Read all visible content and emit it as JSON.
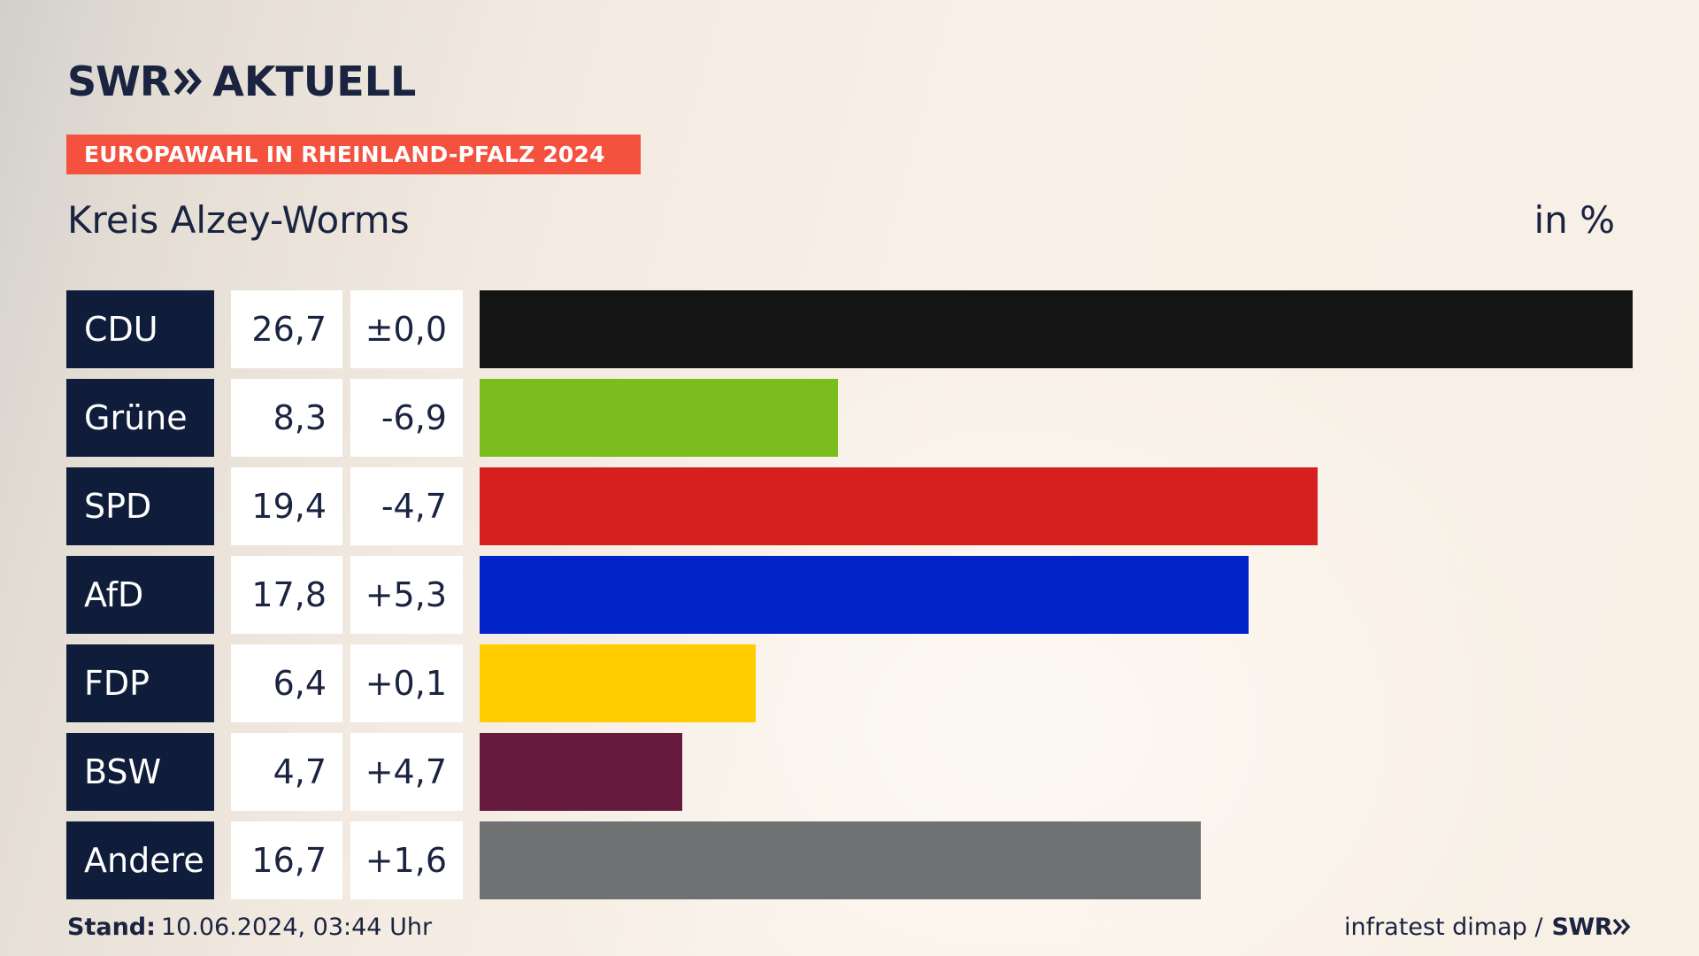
{
  "header": {
    "logo_brand": "SWR",
    "logo_product": "AKTUELL",
    "banner": "EUROPAWAHL IN RHEINLAND-PFALZ 2024",
    "subtitle": "Kreis Alzey-Worms",
    "unit": "in %"
  },
  "chart_data": {
    "type": "bar",
    "orientation": "horizontal",
    "categories": [
      "CDU",
      "Grüne",
      "SPD",
      "AfD",
      "FDP",
      "BSW",
      "Andere"
    ],
    "values": [
      26.7,
      8.3,
      19.4,
      17.8,
      6.4,
      4.7,
      16.7
    ],
    "value_labels": [
      "26,7",
      "8,3",
      "19,4",
      "17,8",
      "6,4",
      "4,7",
      "16,7"
    ],
    "change_labels": [
      "±0,0",
      "-6,9",
      "-4,7",
      "+5,3",
      "+0,1",
      "+4,7",
      "+1,6"
    ],
    "colors": [
      "#141414",
      "#7bbd1c",
      "#d61f1f",
      "#0022c7",
      "#ffcc00",
      "#661a3d",
      "#707173"
    ],
    "title": "Kreis Alzey-Worms",
    "ylabel": "in %",
    "xlim": [
      0,
      26.7
    ],
    "grid": false,
    "legend": "none"
  },
  "footer": {
    "stand_label": "Stand:",
    "stand_value": "10.06.2024, 03:44 Uhr",
    "source": "infratest dimap /",
    "source_logo": "SWR"
  }
}
